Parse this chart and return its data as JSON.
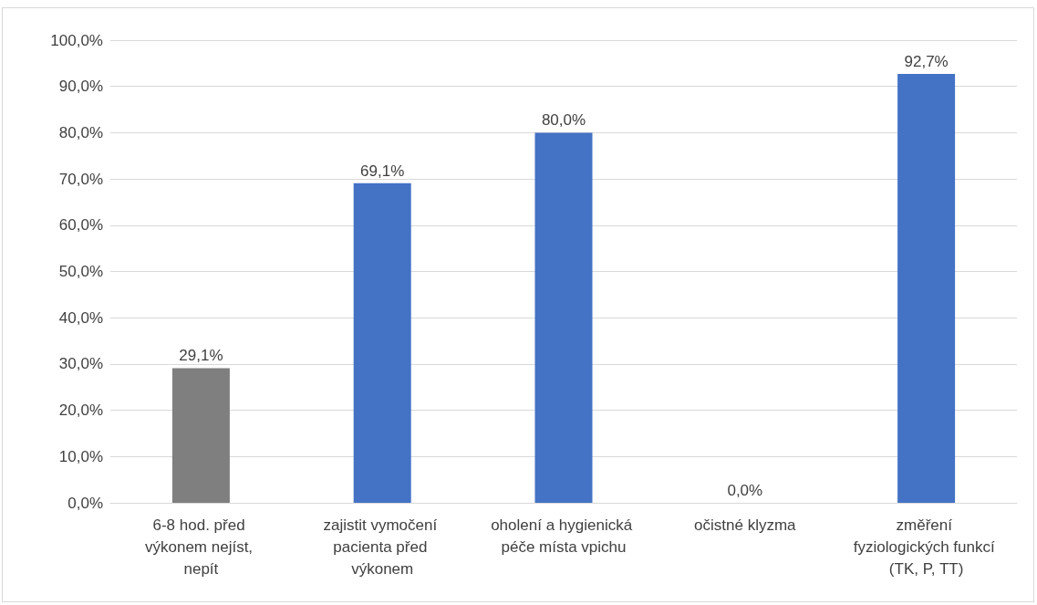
{
  "chart_data": {
    "type": "bar",
    "categories": [
      "6-8 hod. před výkonem nejíst, nepít",
      "zajistit vymočení pacienta před výkonem",
      "oholení a hygienická péče místa vpichu",
      "očistné klyzma",
      "změření fyziologických funkcí (TK, P, TT)"
    ],
    "values": [
      29.1,
      69.1,
      80.0,
      0.0,
      92.7
    ],
    "colors": [
      "#7f7f7f",
      "#4472c4",
      "#4472c4",
      "#4472c4",
      "#4472c4"
    ],
    "value_labels": [
      "29,1%",
      "69,1%",
      "80,0%",
      "0,0%",
      "92,7%"
    ],
    "ylim": [
      0,
      100
    ],
    "yticks": [
      {
        "value": 0,
        "label": "0,0%"
      },
      {
        "value": 10,
        "label": "10,0%"
      },
      {
        "value": 20,
        "label": "20,0%"
      },
      {
        "value": 30,
        "label": "30,0%"
      },
      {
        "value": 40,
        "label": "40,0%"
      },
      {
        "value": 50,
        "label": "50,0%"
      },
      {
        "value": 60,
        "label": "60,0%"
      },
      {
        "value": 70,
        "label": "70,0%"
      },
      {
        "value": 80,
        "label": "80,0%"
      },
      {
        "value": 90,
        "label": "90,0%"
      },
      {
        "value": 100,
        "label": "100,0%"
      }
    ],
    "grid": "y"
  }
}
